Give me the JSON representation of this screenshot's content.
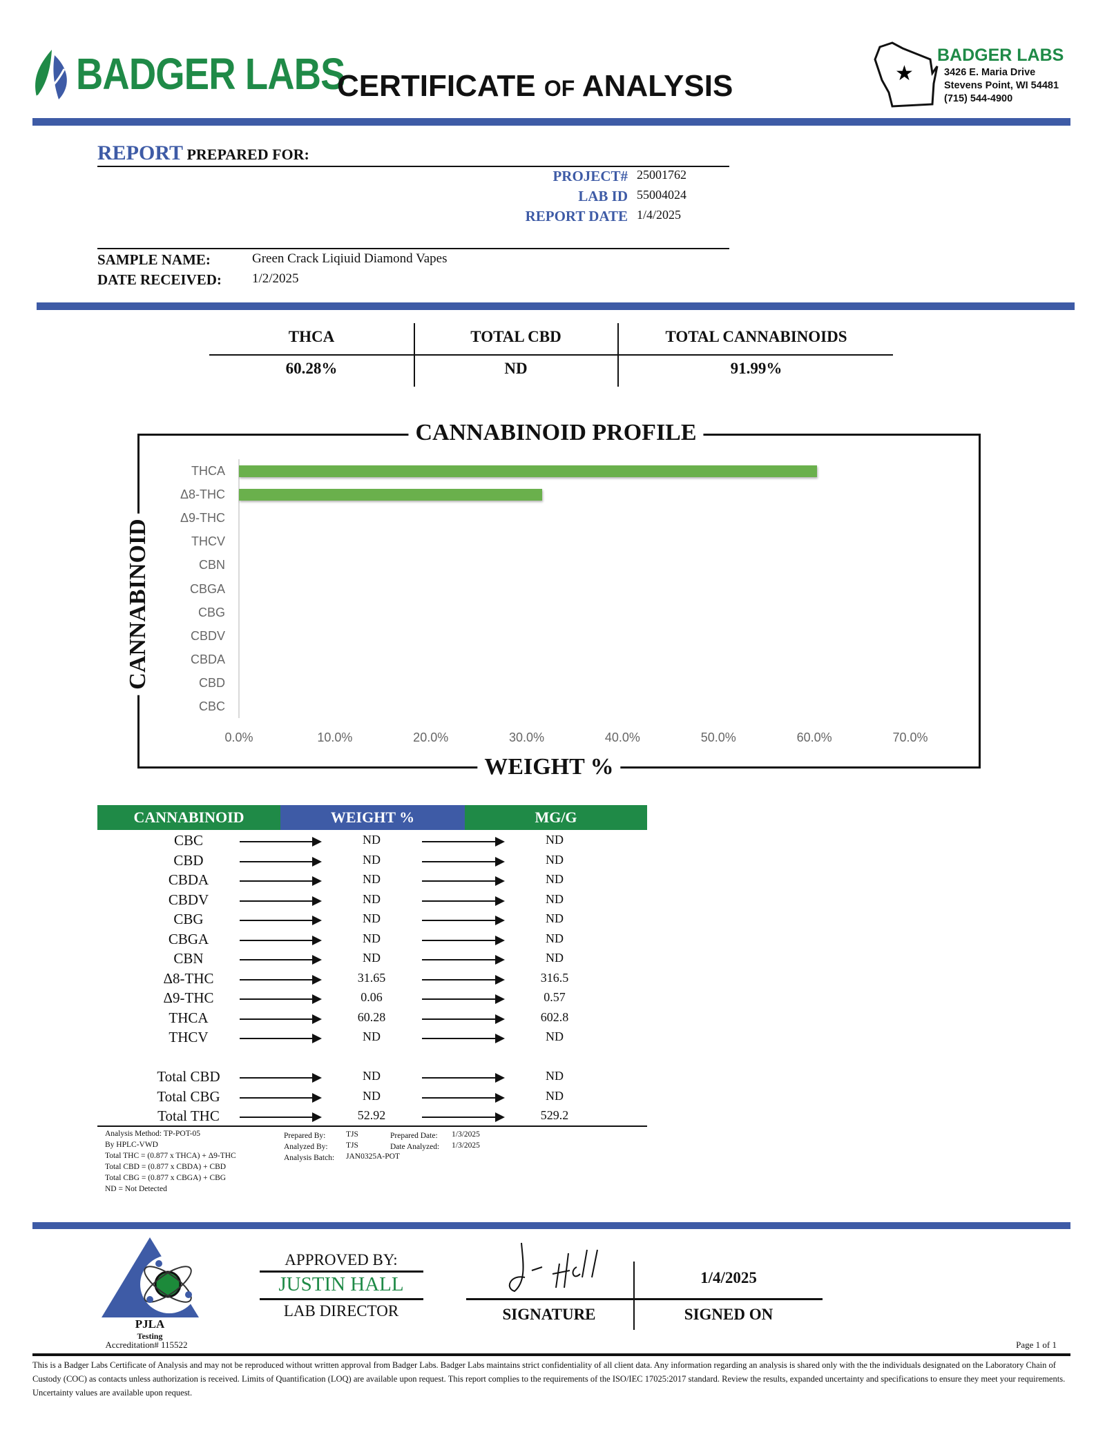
{
  "header": {
    "logo_text": "BADGER LABS",
    "title_part1": "CERTIFICATE",
    "title_of": "OF",
    "title_part2": "ANALYSIS",
    "address_name": "BADGER LABS",
    "address_line1": "3426 E. Maria Drive",
    "address_line2": "Stevens Point, WI 54481",
    "phone": "(715) 544-4900"
  },
  "report": {
    "report_word": "REPORT",
    "prepared_for": "PREPARED FOR:",
    "fields": [
      {
        "label": "PROJECT#",
        "value": "25001762"
      },
      {
        "label": "LAB ID",
        "value": "55004024"
      },
      {
        "label": "REPORT DATE",
        "value": "1/4/2025"
      }
    ],
    "sample_name_label": "SAMPLE NAME:",
    "sample_name": "Green Crack Liqiuid Diamond Vapes",
    "date_received_label": "DATE RECEIVED:",
    "date_received": "1/2/2025"
  },
  "summary": [
    {
      "label": "THCA",
      "value": "60.28%"
    },
    {
      "label": "TOTAL CBD",
      "value": "ND"
    },
    {
      "label": "TOTAL CANNABINOIDS",
      "value": "91.99%"
    }
  ],
  "chart_data": {
    "type": "bar",
    "orientation": "horizontal",
    "title": "CANNABINOID PROFILE",
    "xlabel": "WEIGHT %",
    "ylabel": "CANNABINOID",
    "categories": [
      "THCA",
      "Δ8-THC",
      "Δ9-THC",
      "THCV",
      "CBN",
      "CBGA",
      "CBG",
      "CBDV",
      "CBDA",
      "CBD",
      "CBC"
    ],
    "values": [
      60.28,
      31.65,
      0.06,
      0,
      0,
      0,
      0,
      0,
      0,
      0,
      0
    ],
    "xlim": [
      0,
      70
    ],
    "xticks": [
      "0.0%",
      "10.0%",
      "20.0%",
      "30.0%",
      "40.0%",
      "50.0%",
      "60.0%",
      "70.0%"
    ],
    "grid": false,
    "bar_color": "#6ab04c"
  },
  "table": {
    "headers": [
      "CANNABINOID",
      "WEIGHT %",
      "MG/G"
    ],
    "header_colors": [
      "#1f8a47",
      "#3e5ba6",
      "#1f8a47"
    ],
    "rows": [
      [
        "CBC",
        "ND",
        "ND"
      ],
      [
        "CBD",
        "ND",
        "ND"
      ],
      [
        "CBDA",
        "ND",
        "ND"
      ],
      [
        "CBDV",
        "ND",
        "ND"
      ],
      [
        "CBG",
        "ND",
        "ND"
      ],
      [
        "CBGA",
        "ND",
        "ND"
      ],
      [
        "CBN",
        "ND",
        "ND"
      ],
      [
        "Δ8-THC",
        "31.65",
        "316.5"
      ],
      [
        "Δ9-THC",
        "0.06",
        "0.57"
      ],
      [
        "THCA",
        "60.28",
        "602.8"
      ],
      [
        "THCV",
        "ND",
        "ND"
      ]
    ],
    "totals": [
      [
        "Total CBD",
        "ND",
        "ND"
      ],
      [
        "Total CBG",
        "ND",
        "ND"
      ],
      [
        "Total THC",
        "52.92",
        "529.2"
      ]
    ]
  },
  "notes": {
    "method": [
      "Analysis Method: TP-POT-05",
      "By HPLC-VWD",
      "Total THC = (0.877 x  THCA) + Δ9-THC",
      "Total CBD = (0.877 x  CBDA) + CBD",
      "Total CBG = (0.877 x  CBGA) + CBG",
      "ND = Not Detected"
    ],
    "prepared_by_label": "Prepared By:",
    "prepared_by": "TJS",
    "analyzed_by_label": "Analyzed By:",
    "analyzed_by": "TJS",
    "batch_label": "Analysis Batch:",
    "batch": "JAN0325A-POT",
    "prepared_date_label": "Prepared Date:",
    "prepared_date": "1/3/2025",
    "date_analyzed_label": "Date Analyzed:",
    "date_analyzed": "1/3/2025"
  },
  "approval": {
    "pjla": "PJLA",
    "testing": "Testing",
    "accreditation": "Accreditation# 115522",
    "approved_by": "APPROVED BY:",
    "name": "JUSTIN HALL",
    "role": "LAB DIRECTOR",
    "signature_label": "SIGNATURE",
    "signed_on_label": "SIGNED ON",
    "signed_on": "1/4/2025",
    "page": "Page 1 of 1"
  },
  "disclaimer": "This is a Badger Labs Certificate of Analysis and may not be reproduced without written approval from Badger Labs. Badger Labs maintains strict confidentiality of all client data. Any information regarding an analysis is shared only with the the individuals designated on the Laboratory Chain of Custody (COC) as contacts unless authorization is received. Limits of Quantification (LOQ) are available upon request. This report complies to the requirements of the ISO/IEC 17025:2017 standard. Review the results, expanded uncertainty and specifications to ensure they meet your requirements. Uncertainty values are available upon request."
}
